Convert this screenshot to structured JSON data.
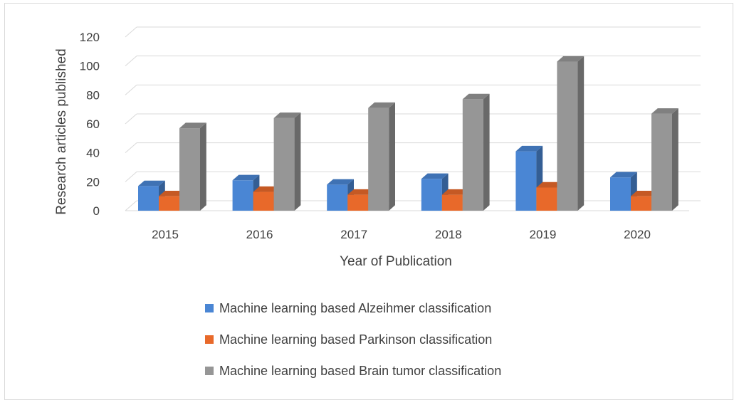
{
  "chart_data": {
    "type": "bar",
    "style": "3d-clustered-column",
    "categories": [
      "2015",
      "2016",
      "2017",
      "2018",
      "2019",
      "2020"
    ],
    "series": [
      {
        "name": "Machine learning based Alzeihmer classification",
        "color": "#4a86d4",
        "values": [
          17,
          21,
          18,
          22,
          41,
          23
        ]
      },
      {
        "name": "Machine learning based Parkinson classification",
        "color": "#e8692a",
        "values": [
          10,
          13,
          11,
          11,
          16,
          10
        ]
      },
      {
        "name": "Machine learning based Brain tumor classification",
        "color": "#969696",
        "values": [
          57,
          64,
          71,
          77,
          103,
          67
        ]
      }
    ],
    "xlabel": "Year of Publication",
    "ylabel": "Research articles published",
    "ylim": [
      0,
      120
    ],
    "yticks": [
      "0",
      "20",
      "40",
      "60",
      "80",
      "100",
      "120"
    ],
    "grid": true,
    "legend_position": "bottom"
  }
}
